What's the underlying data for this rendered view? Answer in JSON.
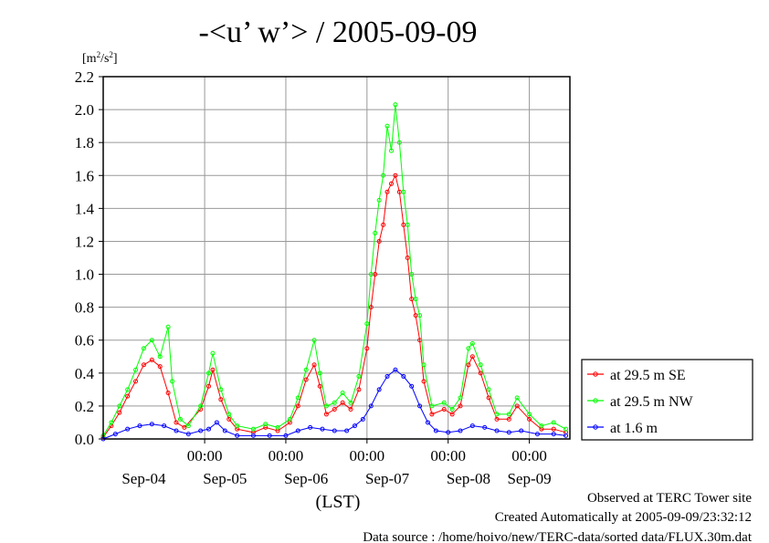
{
  "chart_data": {
    "type": "line",
    "title": "-<u’ w’> / 2005-09-09",
    "ylabel_base": "[m",
    "ylabel_sup1": "2",
    "ylabel_mid": "/s",
    "ylabel_sup2": "2",
    "ylabel_end": "]",
    "xlabel": "(LST)",
    "ylim": [
      0,
      2.2
    ],
    "xlim": [
      -1.25,
      4.5
    ],
    "y_ticks": [
      "0.0",
      "0.2",
      "0.4",
      "0.6",
      "0.8",
      "1.0",
      "1.2",
      "1.4",
      "1.6",
      "1.8",
      "2.0",
      "2.2"
    ],
    "x_tick_labels": [
      "00:00",
      "00:00",
      "00:00",
      "00:00",
      "00:00"
    ],
    "x_tick_days": [
      0,
      1,
      2,
      3,
      4
    ],
    "date_labels": [
      "Sep-04",
      "Sep-05",
      "Sep-06",
      "Sep-07",
      "Sep-08",
      "Sep-09"
    ],
    "date_centers": [
      -0.75,
      0.25,
      1.25,
      2.25,
      3.25,
      4.0
    ],
    "x_unit": "days relative to Sep-05 00:00",
    "grid": true,
    "legend_position": "right",
    "series": [
      {
        "name": "at 29.5 m SE",
        "color": "#ff0000",
        "values": [
          [
            -1.25,
            0.01
          ],
          [
            -1.15,
            0.08
          ],
          [
            -1.05,
            0.16
          ],
          [
            -0.95,
            0.26
          ],
          [
            -0.85,
            0.35
          ],
          [
            -0.75,
            0.45
          ],
          [
            -0.65,
            0.48
          ],
          [
            -0.55,
            0.44
          ],
          [
            -0.45,
            0.28
          ],
          [
            -0.35,
            0.1
          ],
          [
            -0.25,
            0.07
          ],
          [
            -0.05,
            0.18
          ],
          [
            0.05,
            0.32
          ],
          [
            0.1,
            0.42
          ],
          [
            0.2,
            0.24
          ],
          [
            0.3,
            0.12
          ],
          [
            0.4,
            0.06
          ],
          [
            0.6,
            0.04
          ],
          [
            0.75,
            0.07
          ],
          [
            0.9,
            0.05
          ],
          [
            1.05,
            0.1
          ],
          [
            1.15,
            0.2
          ],
          [
            1.25,
            0.36
          ],
          [
            1.35,
            0.45
          ],
          [
            1.42,
            0.32
          ],
          [
            1.5,
            0.15
          ],
          [
            1.6,
            0.18
          ],
          [
            1.7,
            0.22
          ],
          [
            1.8,
            0.18
          ],
          [
            1.9,
            0.3
          ],
          [
            2.0,
            0.55
          ],
          [
            2.05,
            0.8
          ],
          [
            2.1,
            1.0
          ],
          [
            2.15,
            1.2
          ],
          [
            2.2,
            1.3
          ],
          [
            2.25,
            1.5
          ],
          [
            2.3,
            1.55
          ],
          [
            2.35,
            1.6
          ],
          [
            2.4,
            1.5
          ],
          [
            2.45,
            1.3
          ],
          [
            2.5,
            1.1
          ],
          [
            2.55,
            0.85
          ],
          [
            2.6,
            0.75
          ],
          [
            2.65,
            0.6
          ],
          [
            2.7,
            0.35
          ],
          [
            2.8,
            0.15
          ],
          [
            2.95,
            0.18
          ],
          [
            3.05,
            0.15
          ],
          [
            3.15,
            0.2
          ],
          [
            3.25,
            0.45
          ],
          [
            3.3,
            0.5
          ],
          [
            3.4,
            0.4
          ],
          [
            3.5,
            0.25
          ],
          [
            3.6,
            0.12
          ],
          [
            3.75,
            0.12
          ],
          [
            3.85,
            0.2
          ],
          [
            4.0,
            0.12
          ],
          [
            4.15,
            0.06
          ],
          [
            4.3,
            0.06
          ],
          [
            4.45,
            0.04
          ]
        ]
      },
      {
        "name": "at 29.5 m NW",
        "color": "#00ff00",
        "values": [
          [
            -1.25,
            0.02
          ],
          [
            -1.15,
            0.1
          ],
          [
            -1.05,
            0.2
          ],
          [
            -0.95,
            0.3
          ],
          [
            -0.85,
            0.42
          ],
          [
            -0.75,
            0.55
          ],
          [
            -0.65,
            0.6
          ],
          [
            -0.55,
            0.5
          ],
          [
            -0.45,
            0.68
          ],
          [
            -0.4,
            0.35
          ],
          [
            -0.3,
            0.12
          ],
          [
            -0.2,
            0.08
          ],
          [
            -0.05,
            0.2
          ],
          [
            0.05,
            0.4
          ],
          [
            0.1,
            0.52
          ],
          [
            0.2,
            0.3
          ],
          [
            0.3,
            0.15
          ],
          [
            0.4,
            0.08
          ],
          [
            0.6,
            0.06
          ],
          [
            0.75,
            0.09
          ],
          [
            0.9,
            0.07
          ],
          [
            1.05,
            0.12
          ],
          [
            1.15,
            0.25
          ],
          [
            1.25,
            0.42
          ],
          [
            1.35,
            0.6
          ],
          [
            1.42,
            0.4
          ],
          [
            1.5,
            0.2
          ],
          [
            1.6,
            0.22
          ],
          [
            1.7,
            0.28
          ],
          [
            1.8,
            0.22
          ],
          [
            1.9,
            0.38
          ],
          [
            2.0,
            0.7
          ],
          [
            2.05,
            1.0
          ],
          [
            2.1,
            1.25
          ],
          [
            2.15,
            1.45
          ],
          [
            2.2,
            1.6
          ],
          [
            2.25,
            1.9
          ],
          [
            2.3,
            1.75
          ],
          [
            2.35,
            2.03
          ],
          [
            2.4,
            1.8
          ],
          [
            2.45,
            1.5
          ],
          [
            2.5,
            1.3
          ],
          [
            2.55,
            1.0
          ],
          [
            2.6,
            0.85
          ],
          [
            2.65,
            0.75
          ],
          [
            2.7,
            0.45
          ],
          [
            2.8,
            0.2
          ],
          [
            2.95,
            0.22
          ],
          [
            3.05,
            0.18
          ],
          [
            3.15,
            0.25
          ],
          [
            3.25,
            0.55
          ],
          [
            3.3,
            0.58
          ],
          [
            3.4,
            0.45
          ],
          [
            3.5,
            0.3
          ],
          [
            3.6,
            0.15
          ],
          [
            3.75,
            0.15
          ],
          [
            3.85,
            0.25
          ],
          [
            4.0,
            0.15
          ],
          [
            4.15,
            0.08
          ],
          [
            4.3,
            0.1
          ],
          [
            4.45,
            0.06
          ]
        ]
      },
      {
        "name": "at 1.6 m",
        "color": "#0000ff",
        "values": [
          [
            -1.25,
            0.0
          ],
          [
            -1.1,
            0.03
          ],
          [
            -0.95,
            0.06
          ],
          [
            -0.8,
            0.08
          ],
          [
            -0.65,
            0.09
          ],
          [
            -0.5,
            0.08
          ],
          [
            -0.35,
            0.05
          ],
          [
            -0.2,
            0.03
          ],
          [
            -0.05,
            0.05
          ],
          [
            0.05,
            0.06
          ],
          [
            0.15,
            0.1
          ],
          [
            0.25,
            0.05
          ],
          [
            0.4,
            0.02
          ],
          [
            0.6,
            0.02
          ],
          [
            0.8,
            0.02
          ],
          [
            1.0,
            0.02
          ],
          [
            1.15,
            0.05
          ],
          [
            1.3,
            0.07
          ],
          [
            1.45,
            0.06
          ],
          [
            1.6,
            0.05
          ],
          [
            1.75,
            0.05
          ],
          [
            1.85,
            0.08
          ],
          [
            1.95,
            0.12
          ],
          [
            2.05,
            0.2
          ],
          [
            2.15,
            0.3
          ],
          [
            2.25,
            0.38
          ],
          [
            2.35,
            0.42
          ],
          [
            2.45,
            0.38
          ],
          [
            2.55,
            0.32
          ],
          [
            2.65,
            0.2
          ],
          [
            2.75,
            0.1
          ],
          [
            2.85,
            0.05
          ],
          [
            3.0,
            0.04
          ],
          [
            3.15,
            0.05
          ],
          [
            3.3,
            0.08
          ],
          [
            3.45,
            0.07
          ],
          [
            3.6,
            0.05
          ],
          [
            3.75,
            0.04
          ],
          [
            3.9,
            0.05
          ],
          [
            4.1,
            0.03
          ],
          [
            4.3,
            0.03
          ],
          [
            4.45,
            0.02
          ]
        ]
      }
    ]
  },
  "footer": {
    "line1": "Observed at TERC Tower site",
    "line2": "Created Automatically at 2005-09-09/23:32:12",
    "line3": "Data source : /home/hoivo/new/TERC-data/sorted  data/FLUX.30m.dat"
  }
}
